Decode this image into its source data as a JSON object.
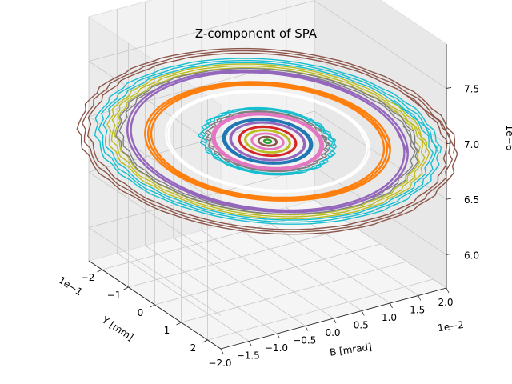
{
  "chart_data": {
    "type": "line",
    "projection": "3d",
    "title": "Z-component of SPA",
    "xlabel": "B [mrad]",
    "ylabel": "Y [mm]",
    "zlabel": "",
    "x_scale_label": "1e−2",
    "y_scale_label": "1e−1",
    "z_scale_label": "1e−6",
    "x_ticks": [
      "−2.0",
      "−1.5",
      "−1.0",
      "−0.5",
      "0.0",
      "0.5",
      "1.0",
      "1.5",
      "2.0"
    ],
    "y_ticks": [
      "−2",
      "−1",
      "0",
      "1",
      "2"
    ],
    "z_ticks": [
      "6.0",
      "6.5",
      "7.0",
      "7.5"
    ],
    "xlim": [
      -2.0,
      2.0
    ],
    "ylim": [
      -2.5,
      2.5
    ],
    "zlim": [
      5.7,
      7.9
    ],
    "grid": true,
    "legend": "none",
    "series": [
      {
        "color": "#8c564b",
        "b_amp": 2.15,
        "y_amp": 2.55,
        "z_amp": 0.83,
        "jagged": true,
        "loops": 3
      },
      {
        "color": "#17becf",
        "b_amp": 1.95,
        "y_amp": 2.35,
        "z_amp": 0.74,
        "jagged": true,
        "loops": 3
      },
      {
        "color": "#bcbd22",
        "b_amp": 1.8,
        "y_amp": 2.2,
        "z_amp": 0.69,
        "jagged": true,
        "loops": 3
      },
      {
        "color": "#7f7f7f",
        "b_amp": 1.7,
        "y_amp": 2.05,
        "z_amp": 0.65,
        "jagged": true,
        "loops": 2
      },
      {
        "color": "#9467bd",
        "b_amp": 1.55,
        "y_amp": 2.0,
        "z_amp": 0.63,
        "jagged": false,
        "loops": 2
      },
      {
        "color": "#ff7f0e",
        "b_amp": 1.4,
        "y_amp": 1.65,
        "z_amp": 0.53,
        "jagged": false,
        "loops": 3
      },
      {
        "color": "#ffffff",
        "b_amp": 1.15,
        "y_amp": 1.4,
        "z_amp": 0.45,
        "jagged": false,
        "loops": 2
      },
      {
        "color": "#17becf",
        "b_amp": 0.75,
        "y_amp": 0.95,
        "z_amp": 0.3,
        "jagged": true,
        "loops": 3
      },
      {
        "color": "#7f7f7f",
        "b_amp": 0.68,
        "y_amp": 0.85,
        "z_amp": 0.27,
        "jagged": true,
        "loops": 2
      },
      {
        "color": "#e377c2",
        "b_amp": 0.62,
        "y_amp": 0.78,
        "z_amp": 0.25,
        "jagged": false,
        "loops": 3
      },
      {
        "color": "#1f77b4",
        "b_amp": 0.5,
        "y_amp": 0.62,
        "z_amp": 0.2,
        "jagged": false,
        "loops": 3
      },
      {
        "color": "#9467bd",
        "b_amp": 0.42,
        "y_amp": 0.52,
        "z_amp": 0.17,
        "jagged": false,
        "loops": 2
      },
      {
        "color": "#d62728",
        "b_amp": 0.32,
        "y_amp": 0.4,
        "z_amp": 0.13,
        "jagged": false,
        "loops": 2
      },
      {
        "color": "#bcbd22",
        "b_amp": 0.25,
        "y_amp": 0.32,
        "z_amp": 0.1,
        "jagged": false,
        "loops": 2
      },
      {
        "color": "#e377c2",
        "b_amp": 0.18,
        "y_amp": 0.22,
        "z_amp": 0.07,
        "jagged": false,
        "loops": 2
      },
      {
        "color": "#8c564b",
        "b_amp": 0.1,
        "y_amp": 0.13,
        "z_amp": 0.04,
        "jagged": false,
        "loops": 2
      },
      {
        "color": "#2ca02c",
        "b_amp": 0.04,
        "y_amp": 0.05,
        "z_amp": 0.015,
        "jagged": false,
        "loops": 2
      }
    ],
    "center": {
      "b": 0.0,
      "y": 0.0,
      "z": 6.9
    }
  }
}
